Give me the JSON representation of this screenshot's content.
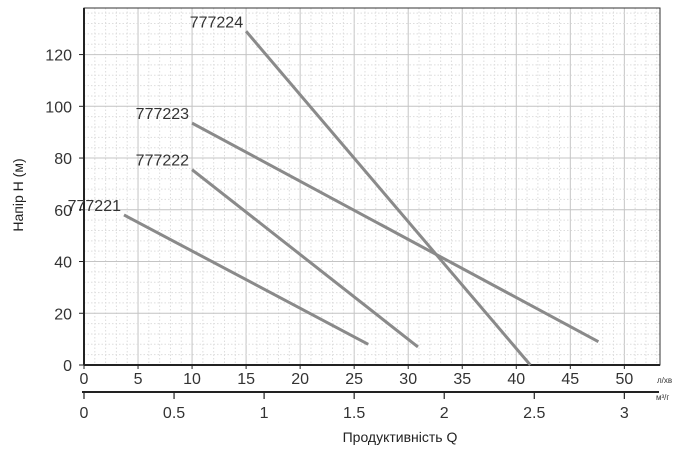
{
  "chart_data": {
    "type": "line",
    "ylabel": "Напір Н (м)",
    "xlabel": "Продуктивність Q",
    "x_units": {
      "primary": "л/хв",
      "secondary": "м³/г"
    },
    "xlim": [
      0,
      53.3
    ],
    "ylim": [
      0,
      138
    ],
    "x_ticks": [
      0,
      5,
      10,
      15,
      20,
      25,
      30,
      35,
      40,
      45,
      50
    ],
    "x2_ticks": [
      0,
      0.5,
      1,
      1.5,
      2,
      2.5,
      3
    ],
    "x2_tick_labels": [
      "0",
      "0.5",
      "1",
      "1.5",
      "2",
      "2.5",
      "3"
    ],
    "y_ticks": [
      0,
      20,
      40,
      60,
      80,
      100,
      120
    ],
    "grid": true,
    "line_color": "#8a8a8a",
    "series": [
      {
        "name": "777221",
        "x": [
          3.7,
          26.3
        ],
        "y": [
          58,
          8
        ]
      },
      {
        "name": "777222",
        "x": [
          10,
          30.9
        ],
        "y": [
          75.5,
          7
        ]
      },
      {
        "name": "777223",
        "x": [
          10,
          47.6
        ],
        "y": [
          93.5,
          9
        ]
      },
      {
        "name": "777224",
        "x": [
          15,
          41.3
        ],
        "y": [
          129,
          0
        ]
      }
    ]
  }
}
